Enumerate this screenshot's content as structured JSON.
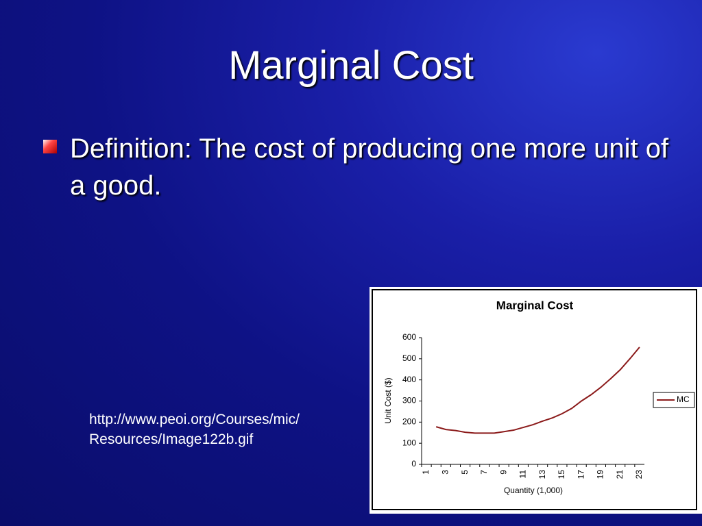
{
  "slide": {
    "title": "Marginal Cost",
    "bullet": "Definition: The cost of producing one more unit of a good.",
    "caption": [
      "http://www.peoi.org/Courses/mic/",
      "Resources/Image122b.gif"
    ]
  },
  "chart_data": {
    "type": "line",
    "title": "Marginal Cost",
    "y_label": "Unit Cost ($)",
    "x_label": "Quantity (1,000)",
    "categories": [
      "1",
      null,
      "3",
      null,
      "5",
      null,
      "7",
      null,
      "9",
      null,
      "11",
      null,
      "13",
      null,
      "15",
      null,
      "17",
      null,
      "19",
      null,
      "21",
      null,
      "23"
    ],
    "series": [
      {
        "name": "MC",
        "color": "#8b1a1a",
        "values": [
          null,
          178,
          165,
          160,
          152,
          148,
          148,
          148,
          155,
          162,
          175,
          188,
          205,
          220,
          240,
          265,
          300,
          330,
          365,
          405,
          448,
          500,
          555
        ]
      }
    ],
    "ylim": [
      0,
      600
    ],
    "yticks": [
      0,
      100,
      200,
      300,
      400,
      500,
      600
    ],
    "legend": "right"
  }
}
